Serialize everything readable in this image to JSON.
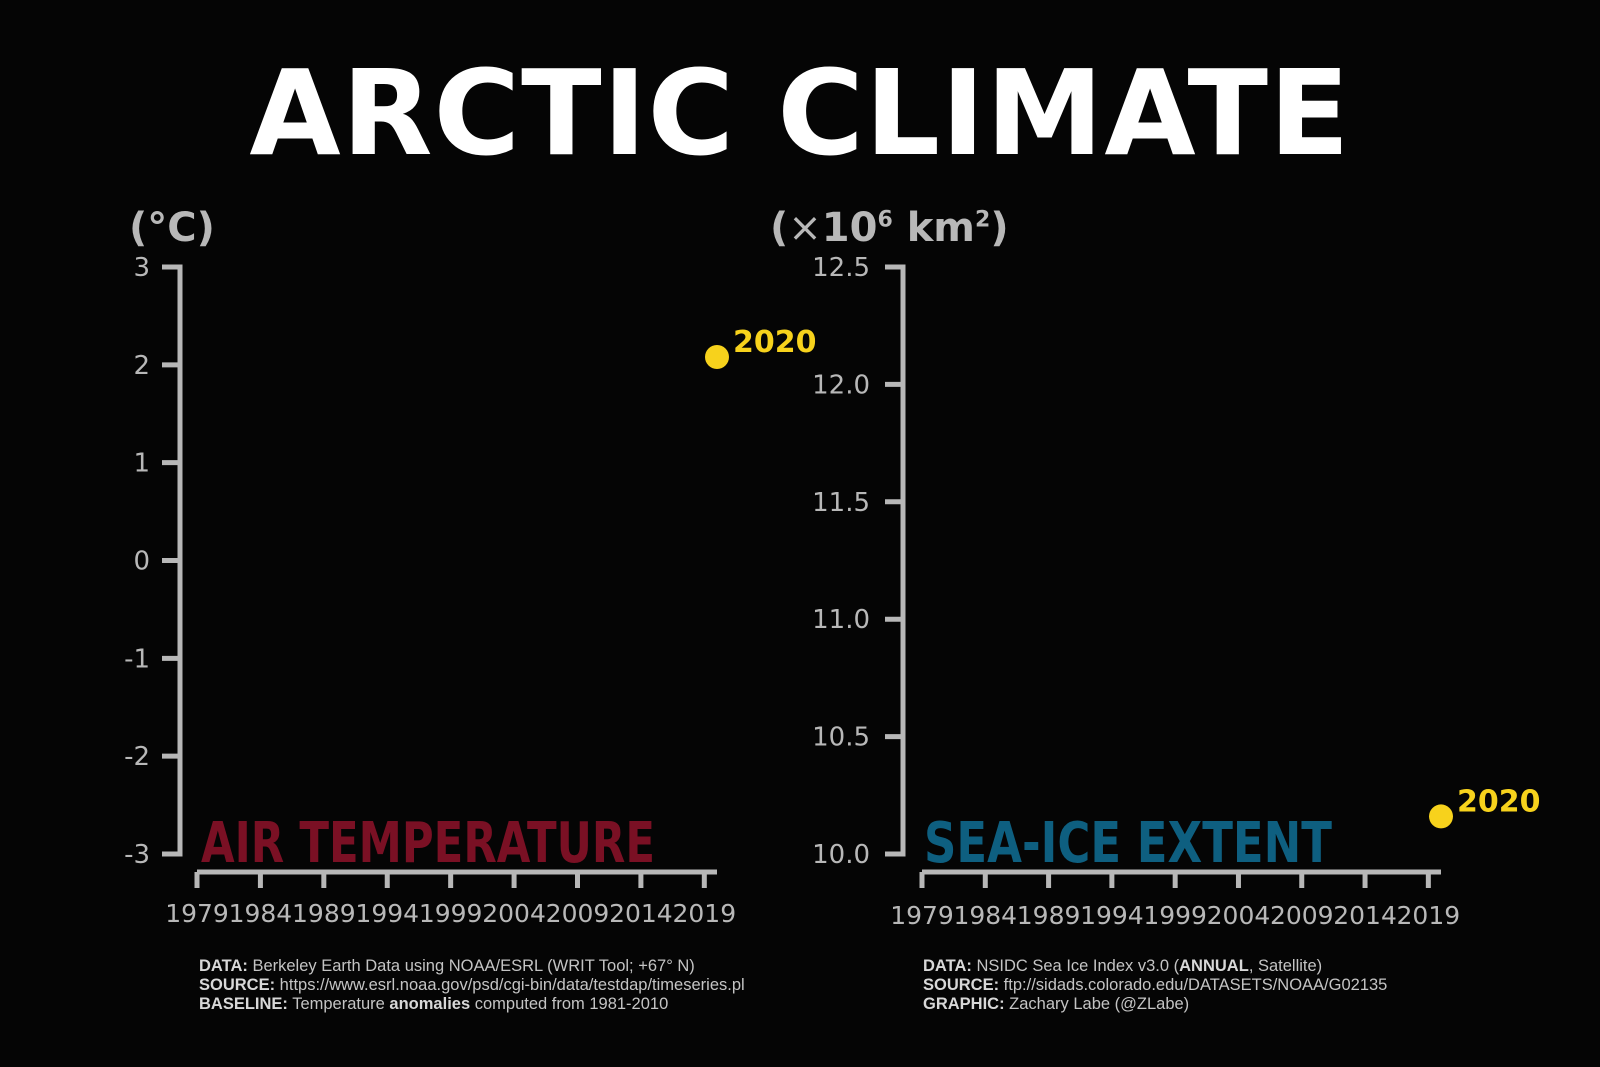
{
  "title": "ARCTIC CLIMATE",
  "colors": {
    "background": "#050505",
    "axis": "#b8b8b8",
    "highlight_point": "#f7d21c",
    "air_temperature_label": "#7a1024",
    "sea_ice_label": "#0e5f80"
  },
  "chart_data": [
    {
      "type": "scatter",
      "id": "air-temperature",
      "label": "AIR TEMPERATURE",
      "ylabel": "(°C)",
      "x_ticks": [
        "1979",
        "1984",
        "1989",
        "1994",
        "1999",
        "2004",
        "2009",
        "2014",
        "2019"
      ],
      "xlim": [
        1979,
        2020
      ],
      "ylim": [
        -3,
        3
      ],
      "y_ticks": [
        "3",
        "2",
        "1",
        "0",
        "-1",
        "-2",
        "-3"
      ],
      "y_tick_values": [
        3,
        2,
        1,
        0,
        -1,
        -2,
        -3
      ],
      "grid": false,
      "points": [
        {
          "x": 2020,
          "y": 2.08,
          "label": "2020"
        }
      ]
    },
    {
      "type": "scatter",
      "id": "sea-ice-extent",
      "label": "SEA-ICE EXTENT",
      "ylabel_main": "(",
      "ylabel_times": "×",
      "ylabel_base": "10",
      "ylabel_exp": "6",
      "ylabel_unit": " km",
      "ylabel_unit_exp": "2",
      "ylabel_close": ")",
      "x_ticks": [
        "1979",
        "1984",
        "1989",
        "1994",
        "1999",
        "2004",
        "2009",
        "2014",
        "2019"
      ],
      "xlim": [
        1979,
        2020
      ],
      "ylim": [
        10.0,
        12.5
      ],
      "y_ticks": [
        "12.5",
        "12.0",
        "11.5",
        "11.0",
        "10.5",
        "10.0"
      ],
      "y_tick_values": [
        12.5,
        12.0,
        11.5,
        11.0,
        10.5,
        10.0
      ],
      "grid": false,
      "points": [
        {
          "x": 2020,
          "y": 10.16,
          "label": "2020"
        }
      ]
    }
  ],
  "footer_left": {
    "data_key": "DATA:",
    "data_text": " Berkeley Earth Data using NOAA/ESRL (WRIT Tool; +67° N)",
    "source_key": "SOURCE:",
    "source_text": " https://www.esrl.noaa.gov/psd/cgi-bin/data/testdap/timeseries.pl",
    "baseline_key": "BASELINE:",
    "baseline_text_1": " Temperature ",
    "baseline_bold": "anomalies",
    "baseline_text_2": " computed from 1981-2010"
  },
  "footer_right": {
    "data_key": "DATA:",
    "data_text_1": " NSIDC Sea Ice Index v3.0 (",
    "data_bold": "ANNUAL",
    "data_text_2": ", Satellite)",
    "source_key": "SOURCE:",
    "source_text": " ftp://sidads.colorado.edu/DATASETS/NOAA/G02135",
    "graphic_key": "GRAPHIC:",
    "graphic_text": " Zachary Labe (@ZLabe)"
  }
}
